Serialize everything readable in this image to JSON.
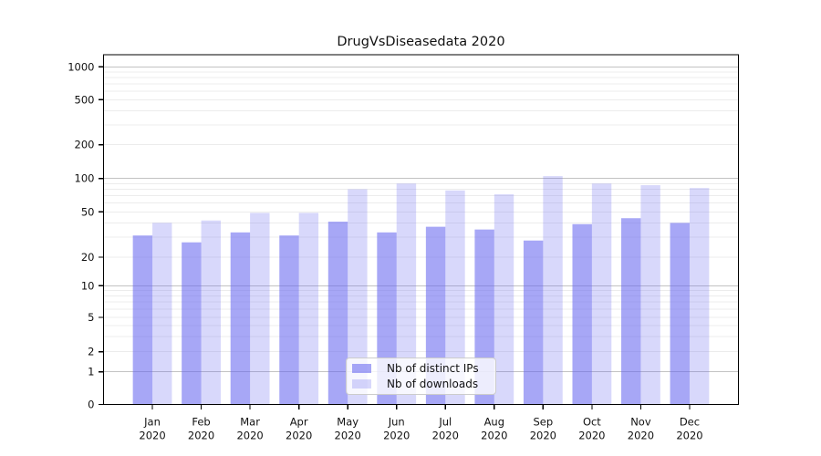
{
  "title": "DrugVsDiseasedata 2020",
  "chart_data": {
    "type": "bar",
    "title": "DrugVsDiseasedata 2020",
    "categories": [
      "Jan 2020",
      "Feb 2020",
      "Mar 2020",
      "Apr 2020",
      "May 2020",
      "Jun 2020",
      "Jul 2020",
      "Aug 2020",
      "Sep 2020",
      "Oct 2020",
      "Nov 2020",
      "Dec 2020"
    ],
    "x_tick_months": [
      "Jan",
      "Feb",
      "Mar",
      "Apr",
      "May",
      "Jun",
      "Jul",
      "Aug",
      "Sep",
      "Oct",
      "Nov",
      "Dec"
    ],
    "x_tick_year": "2020",
    "series": [
      {
        "name": "Nb of distinct IPs",
        "color": "rgba(100,100,240,0.57)",
        "values": [
          31,
          27,
          33,
          31,
          41,
          33,
          37,
          35,
          28,
          39,
          44,
          40
        ]
      },
      {
        "name": "Nb of downloads",
        "color": "rgba(100,100,240,0.25)",
        "values": [
          40,
          42,
          49,
          49,
          80,
          90,
          78,
          72,
          105,
          90,
          87,
          82
        ]
      }
    ],
    "xlabel": "",
    "ylabel": "",
    "yscale": "symlog",
    "y_ticks": [
      0,
      1,
      2,
      5,
      10,
      20,
      50,
      100,
      200,
      500,
      1000
    ],
    "ylim": [
      0,
      1290
    ],
    "grid": true,
    "grid_major_color": "#c3c3c3",
    "grid_minor_color": "#ececec",
    "legend_position": "lower center",
    "text_color": "#111111",
    "spine_color": "#000000"
  }
}
